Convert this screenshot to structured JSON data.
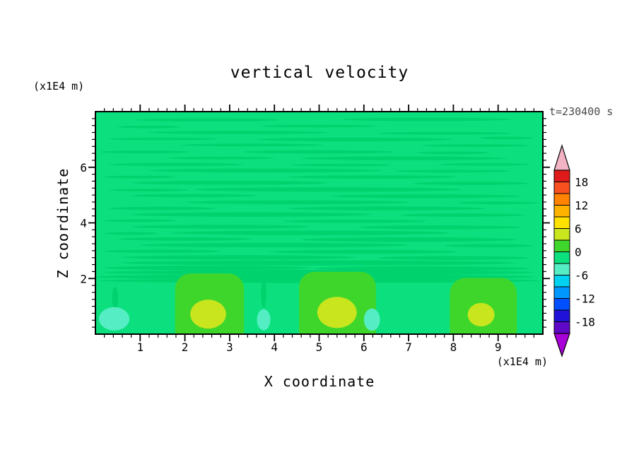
{
  "title": "vertical velocity",
  "timestamp": "t=230400 s",
  "axes": {
    "x_title": "X coordinate",
    "x_unit_label": "(x1E4 m)",
    "x_tick_labels": [
      "1",
      "2",
      "3",
      "4",
      "5",
      "6",
      "7",
      "8",
      "9"
    ],
    "y_title": "Z coordinate",
    "y_unit_label": "(x1E4 m)",
    "y_tick_labels": [
      "2",
      "4",
      "6"
    ]
  },
  "colorbar": {
    "tick_labels": [
      "18",
      "12",
      "6",
      "0",
      "-6",
      "-12",
      "-18"
    ],
    "segment_colors": [
      "#DE1A1A",
      "#F8501E",
      "#FF8200",
      "#FFB300",
      "#FFE100",
      "#C8E51E",
      "#3FD62B",
      "#0CE07E",
      "#55EDC4",
      "#00D2F0",
      "#0098FF",
      "#0050FF",
      "#2012D8",
      "#6008C8"
    ],
    "arrow_top_color": "#F2B4C4",
    "arrow_bottom_color": "#A800D8"
  },
  "chart_data": {
    "type": "heatmap",
    "title": "vertical velocity",
    "field": "vertical velocity",
    "time_label": "t=230400 s",
    "time_seconds": 230400,
    "xlabel": "X coordinate (x1E4 m)",
    "ylabel": "Z coordinate (x1E4 m)",
    "x_range": [
      0,
      10
    ],
    "z_range": [
      0,
      8
    ],
    "contour_interval": 3,
    "levels": [
      -21,
      -18,
      -15,
      -12,
      -9,
      -6,
      -3,
      0,
      3,
      6,
      9,
      12,
      15,
      18,
      21
    ],
    "background_band": "-3 to 0",
    "colors": {
      "background": "#0CE07E",
      "streak": "#00D26E",
      "cell": "#3FD62B",
      "core": "#C8E51E",
      "patch": "#55EDC4"
    },
    "streaks": [
      [
        2.5,
        7.7,
        1.6,
        0.06
      ],
      [
        7.4,
        7.72,
        1.9,
        0.06
      ],
      [
        5.0,
        7.48,
        1.3,
        0.05
      ],
      [
        1.2,
        7.45,
        0.7,
        0.05
      ],
      [
        3.2,
        7.25,
        2.0,
        0.06
      ],
      [
        7.8,
        7.22,
        1.5,
        0.05
      ],
      [
        1.5,
        7.02,
        1.2,
        0.05
      ],
      [
        5.8,
        7.0,
        2.2,
        0.07
      ],
      [
        9.2,
        7.05,
        0.6,
        0.05
      ],
      [
        3.5,
        6.8,
        1.6,
        0.05
      ],
      [
        8.5,
        6.78,
        1.2,
        0.05
      ],
      [
        1.1,
        6.55,
        1.0,
        0.05
      ],
      [
        5.0,
        6.55,
        1.7,
        0.06
      ],
      [
        8.0,
        6.52,
        0.8,
        0.05
      ],
      [
        2.8,
        6.33,
        1.2,
        0.05
      ],
      [
        6.9,
        6.32,
        2.3,
        0.07
      ],
      [
        1.8,
        6.1,
        1.5,
        0.06
      ],
      [
        5.5,
        6.08,
        1.1,
        0.05
      ],
      [
        8.7,
        6.1,
        1.0,
        0.05
      ],
      [
        3.8,
        5.88,
        2.6,
        0.07
      ],
      [
        8.0,
        5.86,
        1.3,
        0.05
      ],
      [
        1.0,
        5.65,
        0.8,
        0.05
      ],
      [
        6.2,
        5.65,
        1.9,
        0.06
      ],
      [
        3.0,
        5.44,
        2.2,
        0.07
      ],
      [
        8.4,
        5.42,
        1.3,
        0.06
      ],
      [
        5.2,
        5.2,
        3.0,
        0.08
      ],
      [
        1.2,
        5.18,
        0.9,
        0.05
      ],
      [
        2.2,
        4.98,
        1.4,
        0.06
      ],
      [
        7.4,
        4.96,
        2.1,
        0.07
      ],
      [
        4.5,
        4.74,
        2.5,
        0.07
      ],
      [
        9.0,
        4.72,
        0.9,
        0.05
      ],
      [
        1.5,
        4.52,
        1.2,
        0.06
      ],
      [
        6.5,
        4.52,
        2.2,
        0.07
      ],
      [
        3.5,
        4.3,
        2.7,
        0.08
      ],
      [
        8.2,
        4.28,
        1.4,
        0.06
      ],
      [
        1.0,
        4.08,
        0.8,
        0.05
      ],
      [
        5.8,
        4.06,
        1.6,
        0.06
      ],
      [
        2.8,
        3.86,
        2.0,
        0.07
      ],
      [
        7.7,
        3.84,
        1.8,
        0.07
      ],
      [
        4.8,
        3.64,
        3.1,
        0.08
      ],
      [
        0.8,
        3.62,
        0.6,
        0.05
      ],
      [
        2.0,
        3.42,
        1.5,
        0.06
      ],
      [
        7.0,
        3.4,
        2.4,
        0.08
      ],
      [
        4.0,
        3.2,
        3.0,
        0.08
      ],
      [
        8.8,
        3.18,
        1.0,
        0.06
      ],
      [
        1.5,
        2.98,
        1.3,
        0.06
      ],
      [
        6.0,
        2.96,
        2.1,
        0.07
      ],
      [
        3.2,
        2.76,
        2.6,
        0.08
      ],
      [
        8.0,
        2.74,
        1.7,
        0.07
      ],
      [
        5.0,
        2.56,
        4.4,
        0.09
      ],
      [
        2.5,
        2.38,
        2.3,
        0.08
      ],
      [
        7.3,
        2.36,
        2.4,
        0.08
      ],
      [
        5.0,
        2.22,
        4.8,
        0.09
      ],
      [
        4.9,
        2.06,
        4.9,
        0.1
      ],
      [
        5.0,
        1.92,
        4.95,
        0.08
      ],
      [
        3.76,
        1.45,
        0.06,
        0.5
      ],
      [
        6.18,
        1.4,
        0.06,
        0.45
      ],
      [
        0.44,
        1.3,
        0.07,
        0.4
      ]
    ],
    "updraft_cells": [
      {
        "x0": 1.78,
        "x1": 3.32,
        "top": 2.18
      },
      {
        "x0": 4.55,
        "x1": 6.27,
        "top": 2.24
      },
      {
        "x0": 7.92,
        "x1": 9.42,
        "top": 2.02
      }
    ],
    "updraft_cores": [
      [
        2.52,
        0.72,
        0.4,
        0.52
      ],
      [
        5.4,
        0.78,
        0.44,
        0.56
      ],
      [
        8.62,
        0.7,
        0.3,
        0.42
      ]
    ],
    "downdraft_patches": [
      [
        0.42,
        0.55,
        0.34,
        0.42
      ],
      [
        3.76,
        0.52,
        0.15,
        0.38
      ],
      [
        6.18,
        0.52,
        0.18,
        0.4
      ]
    ]
  }
}
